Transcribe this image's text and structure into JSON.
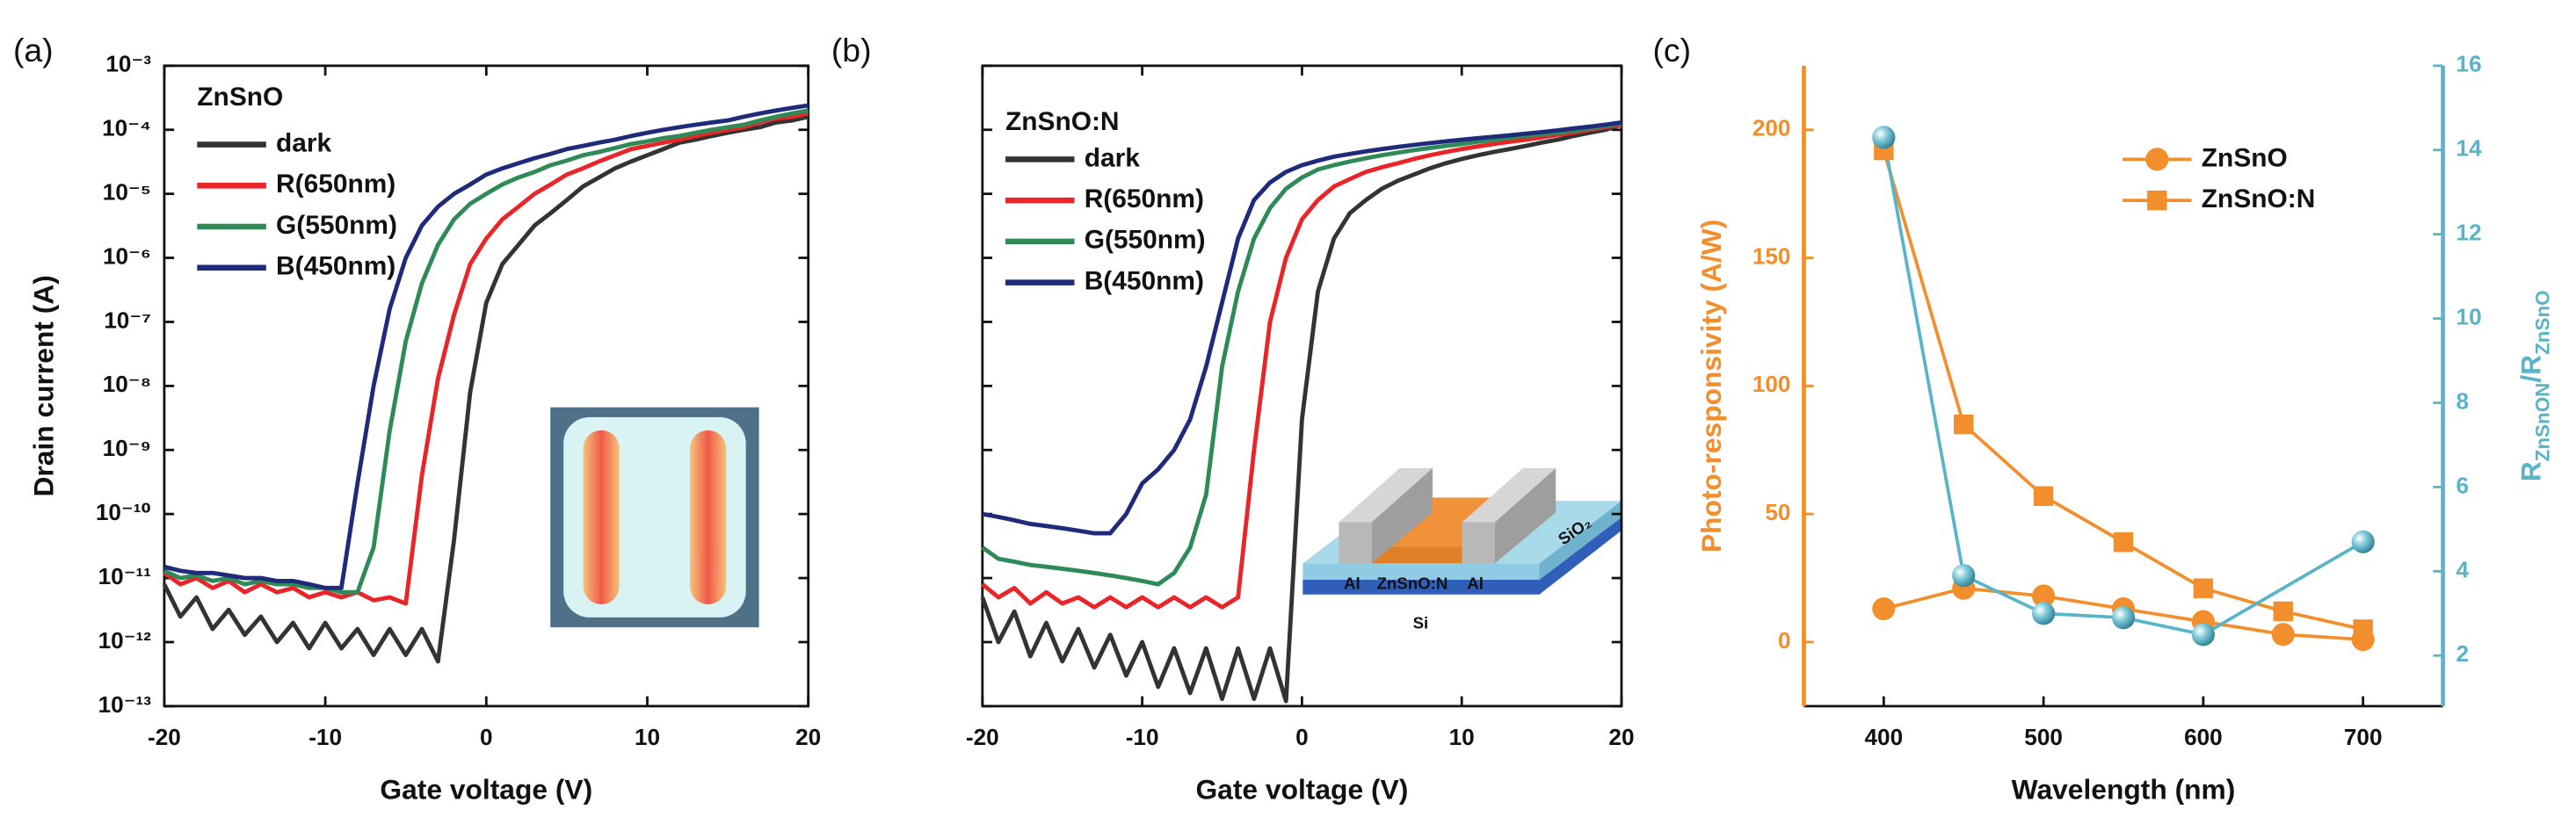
{
  "chart_data": [
    {
      "type": "line",
      "panel_label": "(a)",
      "legend_title": "ZnSnO",
      "xlabel": "Gate voltage (V)",
      "ylabel": "Drain current (A)",
      "ylog": true,
      "frame": "box",
      "xlim": [
        -20,
        20
      ],
      "xticks": [
        -20,
        -10,
        0,
        10,
        20
      ],
      "ylim": [
        1e-13,
        0.001
      ],
      "yticks": [
        {
          "value": 1e-13,
          "label": "10⁻¹³"
        },
        {
          "value": 1e-12,
          "label": "10⁻¹²"
        },
        {
          "value": 1e-11,
          "label": "10⁻¹¹"
        },
        {
          "value": 1e-10,
          "label": "10⁻¹⁰"
        },
        {
          "value": 1e-09,
          "label": "10⁻⁹"
        },
        {
          "value": 1e-08,
          "label": "10⁻⁸"
        },
        {
          "value": 1e-07,
          "label": "10⁻⁷"
        },
        {
          "value": 1e-06,
          "label": "10⁻⁶"
        },
        {
          "value": 1e-05,
          "label": "10⁻⁵"
        },
        {
          "value": 0.0001,
          "label": "10⁻⁴"
        },
        {
          "value": 0.001,
          "label": "10⁻³"
        }
      ],
      "x": [
        -20,
        -19,
        -18,
        -17,
        -16,
        -15,
        -14,
        -13,
        -12,
        -11,
        -10,
        -9,
        -8,
        -7,
        -6,
        -5,
        -4,
        -3,
        -2,
        -1,
        0,
        1,
        2,
        3,
        4,
        5,
        6,
        7,
        8,
        9,
        10,
        11,
        12,
        13,
        14,
        15,
        16,
        17,
        18,
        19,
        20
      ],
      "series": [
        {
          "name": "dark",
          "color": "#333333",
          "values": [
            8e-12,
            2.5e-12,
            5e-12,
            1.6e-12,
            3.2e-12,
            1.3e-12,
            2.5e-12,
            1e-12,
            2e-12,
            8e-13,
            2e-12,
            8e-13,
            1.6e-12,
            6.3e-13,
            1.6e-12,
            6.3e-13,
            1.6e-12,
            5e-13,
            4e-11,
            8e-09,
            2e-07,
            8e-07,
            1.6e-06,
            3.2e-06,
            5e-06,
            8e-06,
            1.3e-05,
            1.8e-05,
            2.5e-05,
            3.2e-05,
            4e-05,
            5e-05,
            6.3e-05,
            7e-05,
            8e-05,
            9e-05,
            0.0001,
            0.00011,
            0.00013,
            0.00014,
            0.00016
          ]
        },
        {
          "name": "R(650nm)",
          "color": "#e8262a",
          "values": [
            1.2e-11,
            8e-12,
            1e-11,
            7e-12,
            9e-12,
            6e-12,
            8e-12,
            6e-12,
            7e-12,
            5e-12,
            6e-12,
            5e-12,
            6e-12,
            4.5e-12,
            5e-12,
            4e-12,
            4e-10,
            1.3e-08,
            1.3e-07,
            8e-07,
            2e-06,
            4e-06,
            6.3e-06,
            1e-05,
            1.4e-05,
            2e-05,
            2.5e-05,
            3.2e-05,
            4e-05,
            5e-05,
            5.6e-05,
            6.3e-05,
            7e-05,
            8e-05,
            9e-05,
            0.0001,
            0.00011,
            0.00013,
            0.00015,
            0.00016,
            0.00018
          ]
        },
        {
          "name": "G(550nm)",
          "color": "#2e8b57",
          "values": [
            1.3e-11,
            1e-11,
            1.1e-11,
            9e-12,
            1e-11,
            8e-12,
            9e-12,
            8e-12,
            8e-12,
            7e-12,
            7e-12,
            6e-12,
            6e-12,
            3e-11,
            2e-09,
            5e-08,
            4e-07,
            1.6e-06,
            4e-06,
            7e-06,
            1e-05,
            1.4e-05,
            1.8e-05,
            2.2e-05,
            2.8e-05,
            3.3e-05,
            4e-05,
            4.5e-05,
            5.2e-05,
            6e-05,
            6.6e-05,
            7.4e-05,
            8e-05,
            9e-05,
            0.0001,
            0.00011,
            0.00012,
            0.00014,
            0.00016,
            0.00018,
            0.0002
          ]
        },
        {
          "name": "B(450nm)",
          "color": "#1f2a7a",
          "values": [
            1.5e-11,
            1.3e-11,
            1.2e-11,
            1.2e-11,
            1.1e-11,
            1e-11,
            1e-11,
            9e-12,
            9e-12,
            8e-12,
            7e-12,
            7e-12,
            3e-10,
            1e-08,
            1.6e-07,
            1e-06,
            3.2e-06,
            6.3e-06,
            1e-05,
            1.4e-05,
            2e-05,
            2.5e-05,
            3e-05,
            3.6e-05,
            4.2e-05,
            5e-05,
            5.6e-05,
            6.3e-05,
            7e-05,
            8e-05,
            9e-05,
            0.0001,
            0.00011,
            0.00012,
            0.00013,
            0.00014,
            0.00016,
            0.00018,
            0.0002,
            0.00022,
            0.00024
          ]
        }
      ]
    },
    {
      "type": "line",
      "panel_label": "(b)",
      "legend_title": "ZnSnO:N",
      "xlabel": "Gate voltage (V)",
      "ylog": true,
      "frame": "box",
      "ytick_labels": false,
      "xlim": [
        -20,
        20
      ],
      "xticks": [
        -20,
        -10,
        0,
        10,
        20
      ],
      "ylim": [
        1e-13,
        0.001
      ],
      "yticks": [
        1e-13,
        1e-12,
        1e-11,
        1e-10,
        1e-09,
        1e-08,
        1e-07,
        1e-06,
        1e-05,
        0.0001,
        0.001
      ],
      "inset_labels": [
        "Al",
        "ZnSnO:N",
        "Al",
        "SiO₂",
        "Si"
      ],
      "x": [
        -20,
        -19,
        -18,
        -17,
        -16,
        -15,
        -14,
        -13,
        -12,
        -11,
        -10,
        -9,
        -8,
        -7,
        -6,
        -5,
        -4,
        -3,
        -2,
        -1,
        0,
        1,
        2,
        3,
        4,
        5,
        6,
        7,
        8,
        9,
        10,
        11,
        12,
        13,
        14,
        15,
        16,
        17,
        18,
        19,
        20
      ],
      "series": [
        {
          "name": "dark",
          "color": "#333333",
          "values": [
            5e-12,
            1e-12,
            3e-12,
            6e-13,
            2e-12,
            5e-13,
            1.6e-12,
            4e-13,
            1.3e-12,
            3e-13,
            1e-12,
            2e-13,
            8e-13,
            1.6e-13,
            8e-13,
            1.3e-13,
            8e-13,
            1.3e-13,
            8e-13,
            1.2e-13,
            3e-09,
            3e-07,
            2e-06,
            5e-06,
            8e-06,
            1.2e-05,
            1.6e-05,
            2e-05,
            2.5e-05,
            3e-05,
            3.5e-05,
            4e-05,
            4.5e-05,
            5e-05,
            5.6e-05,
            6.3e-05,
            7e-05,
            8e-05,
            9e-05,
            0.0001,
            0.00012
          ]
        },
        {
          "name": "R(650nm)",
          "color": "#e8262a",
          "values": [
            8e-12,
            5e-12,
            7e-12,
            4e-12,
            6e-12,
            4e-12,
            5e-12,
            3.5e-12,
            5e-12,
            3.5e-12,
            5e-12,
            3.5e-12,
            5e-12,
            3.5e-12,
            5e-12,
            3.5e-12,
            5e-12,
            1e-09,
            1e-07,
            1e-06,
            4e-06,
            8e-06,
            1.3e-05,
            1.7e-05,
            2.2e-05,
            2.6e-05,
            3e-05,
            3.5e-05,
            4e-05,
            4.5e-05,
            5e-05,
            5.5e-05,
            6e-05,
            6.5e-05,
            7e-05,
            7.6e-05,
            8.3e-05,
            9e-05,
            0.0001,
            0.00011,
            0.00012
          ]
        },
        {
          "name": "G(550nm)",
          "color": "#2e8b57",
          "values": [
            3e-11,
            2e-11,
            1.8e-11,
            1.6e-11,
            1.5e-11,
            1.4e-11,
            1.3e-11,
            1.2e-11,
            1.1e-11,
            1e-11,
            9e-12,
            8e-12,
            1.2e-11,
            3e-11,
            2e-10,
            2e-08,
            3e-07,
            2e-06,
            6e-06,
            1.2e-05,
            1.8e-05,
            2.4e-05,
            2.8e-05,
            3.2e-05,
            3.6e-05,
            4e-05,
            4.4e-05,
            4.8e-05,
            5.2e-05,
            5.6e-05,
            6e-05,
            6.5e-05,
            7e-05,
            7.5e-05,
            8e-05,
            8.5e-05,
            9e-05,
            9.6e-05,
            0.000105,
            0.000115,
            0.000125
          ]
        },
        {
          "name": "B(450nm)",
          "color": "#1f2a7a",
          "values": [
            1e-10,
            9e-11,
            8e-11,
            7e-11,
            6.5e-11,
            6e-11,
            5.5e-11,
            5e-11,
            5e-11,
            1e-10,
            3e-10,
            5e-10,
            1e-09,
            3e-09,
            2e-08,
            2e-07,
            2e-06,
            8e-06,
            1.5e-05,
            2.2e-05,
            2.8e-05,
            3.3e-05,
            3.8e-05,
            4.2e-05,
            4.6e-05,
            5e-05,
            5.4e-05,
            5.8e-05,
            6.2e-05,
            6.6e-05,
            7e-05,
            7.4e-05,
            7.8e-05,
            8.2e-05,
            8.7e-05,
            9.2e-05,
            9.8e-05,
            0.000105,
            0.000112,
            0.00012,
            0.00013
          ]
        }
      ]
    },
    {
      "type": "line",
      "panel_label": "(c)",
      "frame": "axes",
      "xlabel": "Wavelength (nm)",
      "ylabel": "Photo-responsivity (A/W)",
      "y2label": [
        {
          "text": "R"
        },
        {
          "text": "ZnSnON",
          "sub": true
        },
        {
          "text": "/R"
        },
        {
          "text": "ZnSnO",
          "sub": true
        }
      ],
      "ycolor": "#f28e2b",
      "y2color": "#5ab4c8",
      "xlim": [
        350,
        750
      ],
      "xticks": [
        400,
        500,
        600,
        700
      ],
      "ylim": [
        -25,
        225
      ],
      "yticks": [
        0,
        50,
        100,
        150,
        200
      ],
      "y2lim": [
        0.8,
        16
      ],
      "y2ticks": [
        2,
        4,
        6,
        8,
        10,
        12,
        14,
        16
      ],
      "x": [
        400,
        450,
        500,
        550,
        600,
        650,
        700
      ],
      "series": [
        {
          "name": "ZnSnO",
          "color": "#f28e2b",
          "marker": "circle",
          "values": [
            13,
            21,
            18,
            13,
            8,
            3,
            1
          ]
        },
        {
          "name": "ZnSnO:N",
          "color": "#f28e2b",
          "marker": "square",
          "values": [
            192,
            85,
            57,
            39,
            21,
            12,
            5
          ]
        },
        {
          "axis": "y2",
          "color": "#5ab4c8",
          "marker": "sphere",
          "x": [
            400,
            450,
            500,
            550,
            600,
            700
          ],
          "values": [
            14.3,
            3.9,
            3.0,
            2.9,
            2.5,
            4.7
          ]
        }
      ]
    }
  ]
}
